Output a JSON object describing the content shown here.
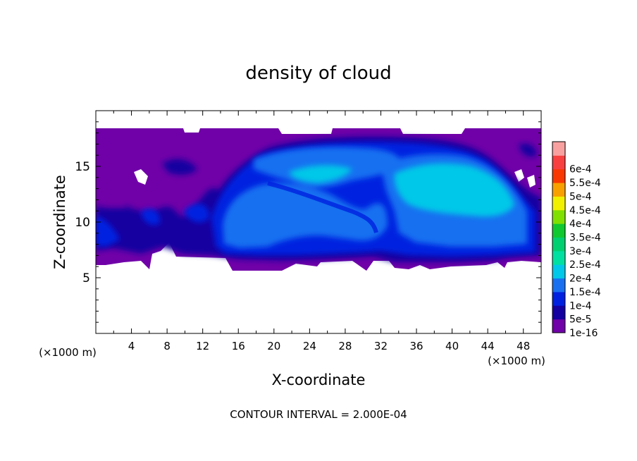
{
  "chart_data": {
    "type": "heatmap",
    "title": "density of cloud",
    "xlabel": "X-coordinate",
    "ylabel": "Z-coordinate",
    "x_unit": "(×1000 m)",
    "z_unit": "(×1000 m)",
    "footer": "CONTOUR INTERVAL = 2.000E-04",
    "xlim": [
      0,
      50
    ],
    "ylim": [
      0,
      20
    ],
    "x_ticks": [
      4,
      8,
      12,
      16,
      20,
      24,
      28,
      32,
      36,
      40,
      44,
      48
    ],
    "y_ticks": [
      5,
      10,
      15
    ],
    "x_tick_labels": [
      "4",
      "8",
      "12",
      "16",
      "20",
      "24",
      "28",
      "32",
      "36",
      "40",
      "44",
      "48"
    ],
    "y_tick_labels": [
      "5",
      "10",
      "15"
    ],
    "colorbar": {
      "labels": [
        "1e-16",
        "5e-5",
        "1e-4",
        "1.5e-4",
        "2e-4",
        "2.5e-4",
        "3e-4",
        "3.5e-4",
        "4e-4",
        "4.5e-4",
        "5e-4",
        "5.5e-4",
        "6e-4"
      ],
      "colors": [
        "#7000a8",
        "#1400a0",
        "#0020e0",
        "#1870f0",
        "#00c8e8",
        "#00e0a0",
        "#00d070",
        "#10c830",
        "#80e000",
        "#f0f000",
        "#f8a000",
        "#f83800",
        "#f84040",
        "#f8a0a0"
      ]
    },
    "features": {
      "cloud_base_km": 6.0,
      "cloud_top_km": 18.2,
      "anvil_core_x_km": [
        14,
        48
      ],
      "anvil_core_z_km": [
        8,
        17
      ],
      "max_density_level": "2e-4"
    }
  }
}
